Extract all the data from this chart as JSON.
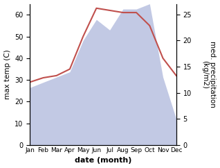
{
  "months": [
    "Jan",
    "Feb",
    "Mar",
    "Apr",
    "May",
    "Jun",
    "Jul",
    "Aug",
    "Sep",
    "Oct",
    "Nov",
    "Dec"
  ],
  "temperature": [
    29,
    31,
    32,
    35,
    50,
    63,
    62,
    61,
    61,
    55,
    40,
    32
  ],
  "precipitation": [
    11,
    12,
    13,
    14,
    20,
    24,
    22,
    26,
    26,
    27,
    13,
    5
  ],
  "temp_color": "#c0504d",
  "precip_color_fill": "#b8c0e0",
  "temp_ylim": [
    0,
    65
  ],
  "precip_ylim": [
    0,
    27
  ],
  "temp_yticks": [
    0,
    10,
    20,
    30,
    40,
    50,
    60
  ],
  "precip_yticks": [
    0,
    5,
    10,
    15,
    20,
    25
  ],
  "xlabel": "date (month)",
  "ylabel_left": "max temp (C)",
  "ylabel_right": "med. precipitation\n(kg/m2)",
  "label_fontsize": 7.5
}
